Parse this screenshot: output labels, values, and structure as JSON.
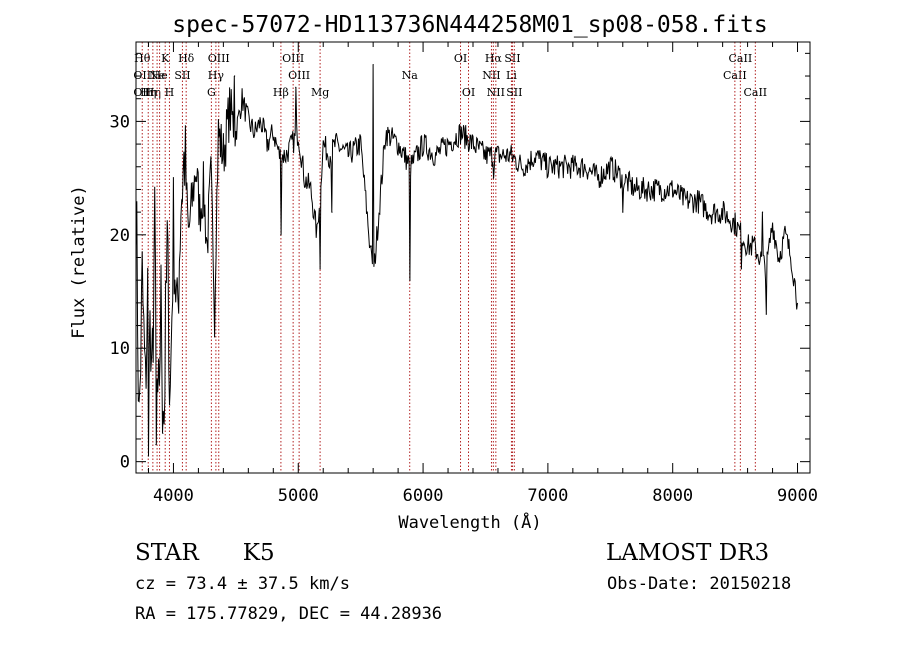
{
  "chart_data": {
    "type": "line",
    "title": "spec-57072-HD113736N444258M01_sp08-058.fits",
    "xlabel": "Wavelength (Å)",
    "ylabel": "Flux (relative)",
    "xlim": [
      3700,
      9100
    ],
    "ylim": [
      -1,
      37
    ],
    "xticks": [
      4000,
      5000,
      6000,
      7000,
      8000,
      9000
    ],
    "yticks": [
      0,
      10,
      20,
      30
    ],
    "grid": false,
    "series": [
      {
        "name": "flux",
        "x": [
          3700,
          3725,
          3750,
          3775,
          3800,
          3825,
          3850,
          3875,
          3900,
          3925,
          3950,
          3975,
          4000,
          4030,
          4060,
          4090,
          4120,
          4150,
          4180,
          4210,
          4240,
          4270,
          4300,
          4330,
          4360,
          4400,
          4450,
          4500,
          4550,
          4600,
          4650,
          4700,
          4750,
          4800,
          4850,
          4900,
          4950,
          5000,
          5050,
          5100,
          5150,
          5200,
          5250,
          5300,
          5400,
          5500,
          5600,
          5700,
          5800,
          5900,
          6000,
          6100,
          6200,
          6300,
          6400,
          6500,
          6600,
          6700,
          6800,
          6900,
          7000,
          7100,
          7200,
          7300,
          7400,
          7500,
          7600,
          7700,
          7800,
          7900,
          8000,
          8100,
          8200,
          8300,
          8400,
          8500,
          8550,
          8600,
          8650,
          8700,
          8750,
          8800,
          8850,
          8900,
          8950,
          9000
        ],
        "y": [
          24,
          3,
          16,
          6,
          18,
          5,
          20,
          2,
          14,
          4,
          19,
          6,
          21,
          12,
          23,
          27,
          20,
          23,
          26,
          22,
          24,
          19,
          25,
          15,
          29,
          27,
          31,
          29,
          32,
          30,
          29,
          30,
          28,
          29,
          27,
          27,
          28,
          29,
          25,
          24,
          20,
          28,
          27,
          28,
          27,
          28,
          16,
          29,
          28,
          26,
          28,
          27,
          28,
          29,
          28,
          27,
          27,
          27,
          26,
          27,
          26,
          26,
          26,
          26,
          25,
          26,
          25,
          24,
          24,
          24,
          24,
          23,
          23,
          22,
          22,
          21,
          20,
          19,
          19,
          18,
          17,
          21,
          18,
          20,
          18,
          14
        ]
      }
    ],
    "absorption_dips": [
      {
        "x": 3800,
        "y": 0.5
      },
      {
        "x": 3860,
        "y": 1.5
      },
      {
        "x": 3915,
        "y": 2.5
      },
      {
        "x": 3970,
        "y": 5
      },
      {
        "x": 4330,
        "y": 11
      },
      {
        "x": 4860,
        "y": 20
      },
      {
        "x": 5175,
        "y": 17
      },
      {
        "x": 5270,
        "y": 22
      },
      {
        "x": 5585,
        "y": 19
      },
      {
        "x": 5895,
        "y": 16
      },
      {
        "x": 6563,
        "y": 25
      },
      {
        "x": 7600,
        "y": 22
      },
      {
        "x": 8550,
        "y": 17
      },
      {
        "x": 8750,
        "y": 13
      }
    ],
    "emission_spikes": [
      {
        "x": 4490,
        "y": 34
      },
      {
        "x": 4980,
        "y": 33
      },
      {
        "x": 5600,
        "y": 35
      },
      {
        "x": 8720,
        "y": 22
      }
    ],
    "line_markers": [
      {
        "x": 3750,
        "rows": [
          "Hθ",
          "OII",
          "OII"
        ]
      },
      {
        "x": 3798,
        "rows": [
          "",
          "",
          "Hη"
        ]
      },
      {
        "x": 3835,
        "rows": [
          "",
          "",
          "Hη"
        ]
      },
      {
        "x": 3869,
        "rows": [
          "",
          "Ne",
          ""
        ]
      },
      {
        "x": 3889,
        "rows": [
          "",
          "He",
          ""
        ]
      },
      {
        "x": 3934,
        "rows": [
          "K",
          "",
          ""
        ]
      },
      {
        "x": 3968,
        "rows": [
          "",
          "",
          "H"
        ]
      },
      {
        "x": 4072,
        "rows": [
          "",
          "SII",
          ""
        ]
      },
      {
        "x": 4102,
        "rows": [
          "Hδ",
          "",
          ""
        ]
      },
      {
        "x": 4304,
        "rows": [
          "",
          "",
          "G"
        ]
      },
      {
        "x": 4340,
        "rows": [
          "",
          "Hγ",
          ""
        ]
      },
      {
        "x": 4363,
        "rows": [
          "OIII",
          "",
          ""
        ]
      },
      {
        "x": 4861,
        "rows": [
          "",
          "",
          "Hβ"
        ]
      },
      {
        "x": 4959,
        "rows": [
          "OIII",
          "",
          ""
        ]
      },
      {
        "x": 5007,
        "rows": [
          "",
          "OIII",
          ""
        ]
      },
      {
        "x": 5175,
        "rows": [
          "",
          "",
          "Mg"
        ]
      },
      {
        "x": 5893,
        "rows": [
          "",
          "Na",
          ""
        ]
      },
      {
        "x": 6300,
        "rows": [
          "OI",
          "",
          ""
        ]
      },
      {
        "x": 6364,
        "rows": [
          "",
          "",
          "OI"
        ]
      },
      {
        "x": 6548,
        "rows": [
          "",
          "NII",
          ""
        ]
      },
      {
        "x": 6563,
        "rows": [
          "Hα",
          "",
          ""
        ]
      },
      {
        "x": 6583,
        "rows": [
          "",
          "",
          "NII"
        ]
      },
      {
        "x": 6708,
        "rows": [
          "",
          "Li",
          ""
        ]
      },
      {
        "x": 6716,
        "rows": [
          "SII",
          "",
          ""
        ]
      },
      {
        "x": 6731,
        "rows": [
          "",
          "",
          "SII"
        ]
      },
      {
        "x": 8498,
        "rows": [
          "",
          "CaII",
          ""
        ]
      },
      {
        "x": 8542,
        "rows": [
          "CaII",
          "",
          ""
        ]
      },
      {
        "x": 8662,
        "rows": [
          "",
          "",
          "CaII"
        ]
      }
    ]
  },
  "info": {
    "object_type": "STAR",
    "subclass": "K5",
    "survey": "LAMOST DR3",
    "cz": "cz = 73.4 ± 37.5 km/s",
    "obs_date": "Obs-Date: 20150218",
    "coords": "RA = 175.77829, DEC =  44.28936"
  },
  "colors": {
    "line": "#000000",
    "marker": "#b22222",
    "background": "#ffffff"
  }
}
